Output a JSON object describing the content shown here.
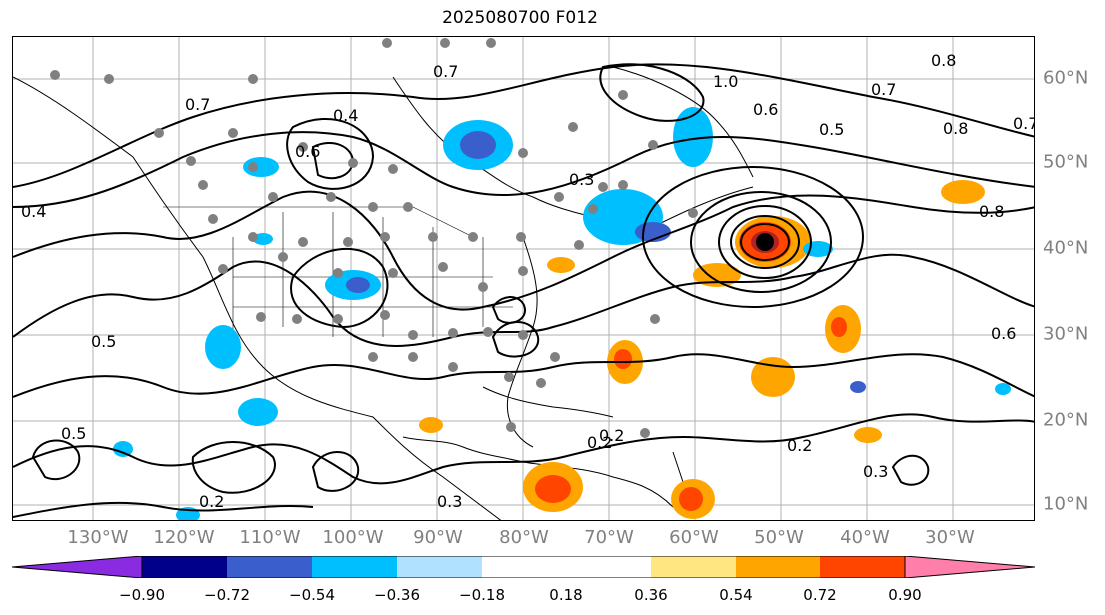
{
  "title": "2025080700 F012",
  "lon_labels": [
    "130°W",
    "120°W",
    "110°W",
    "100°W",
    "90°W",
    "80°W",
    "70°W",
    "60°W",
    "50°W",
    "40°W",
    "30°W"
  ],
  "lat_labels": [
    "60°N",
    "50°N",
    "40°N",
    "30°N",
    "20°N",
    "10°N"
  ],
  "contour_labels": [
    "0.8",
    "0.7",
    "0.5",
    "0.6",
    "0.8",
    "0.7",
    "0.2",
    "0.2",
    "0.2",
    "0.3",
    "0.8",
    "0.6",
    "1.0",
    "0.7",
    "0.4",
    "0.5",
    "0.3",
    "0.6",
    "0.2",
    "0.3",
    "0.5",
    "0.4",
    "0.7"
  ],
  "colorbar": {
    "ticks": [
      "−0.90",
      "−0.72",
      "−0.54",
      "−0.36",
      "−0.18",
      "0.18",
      "0.36",
      "0.54",
      "0.72",
      "0.90"
    ],
    "colors": [
      "#8a2be2",
      "#00008b",
      "#3a5fcd",
      "#00bfff",
      "#b0e2ff",
      "#ffffff",
      "#ffe680",
      "#ffa500",
      "#ff4500",
      "#b22222",
      "#ff7faa"
    ]
  },
  "storm_marker_color": "#000000"
}
